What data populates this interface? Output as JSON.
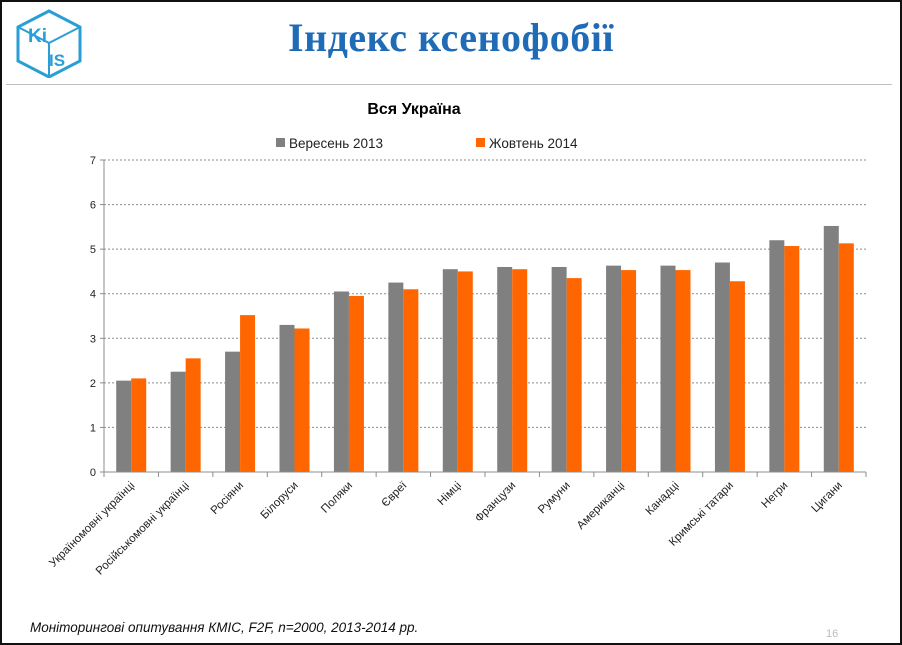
{
  "slide": {
    "logo_text_top": "Ki",
    "logo_text_bottom": "IS",
    "title": "Індекс ксенофобії",
    "footer": "Моніторингові опитування КМІС, F2F, n=2000, 2013-2014 рр.",
    "slide_number": "16"
  },
  "colors": {
    "title": "#1f6bb5",
    "series_2013": "#808080",
    "series_2014": "#ff6600",
    "logo": "#2a9fd6"
  },
  "chart_data": {
    "type": "bar",
    "title": "Вся Україна",
    "categories": [
      "Україномовні українці",
      "Російськомовні українці",
      "Росіяни",
      "Білоруси",
      "Поляки",
      "Євреї",
      "Німці",
      "Французи",
      "Румуни",
      "Американці",
      "Канадці",
      "Кримські татари",
      "Негри",
      "Цигани"
    ],
    "series": [
      {
        "name": "Вересень 2013",
        "color": "#808080",
        "values": [
          2.05,
          2.25,
          2.7,
          3.3,
          4.05,
          4.25,
          4.55,
          4.6,
          4.6,
          4.63,
          4.63,
          4.7,
          5.2,
          5.52
        ]
      },
      {
        "name": "Жовтень 2014",
        "color": "#ff6600",
        "values": [
          2.1,
          2.55,
          3.52,
          3.22,
          3.95,
          4.1,
          4.5,
          4.55,
          4.35,
          4.53,
          4.53,
          4.28,
          5.07,
          5.13
        ]
      }
    ],
    "ylim": [
      0,
      7
    ],
    "yticks": [
      0,
      1,
      2,
      3,
      4,
      5,
      6,
      7
    ],
    "grid": true,
    "legend_position": "top-center"
  }
}
